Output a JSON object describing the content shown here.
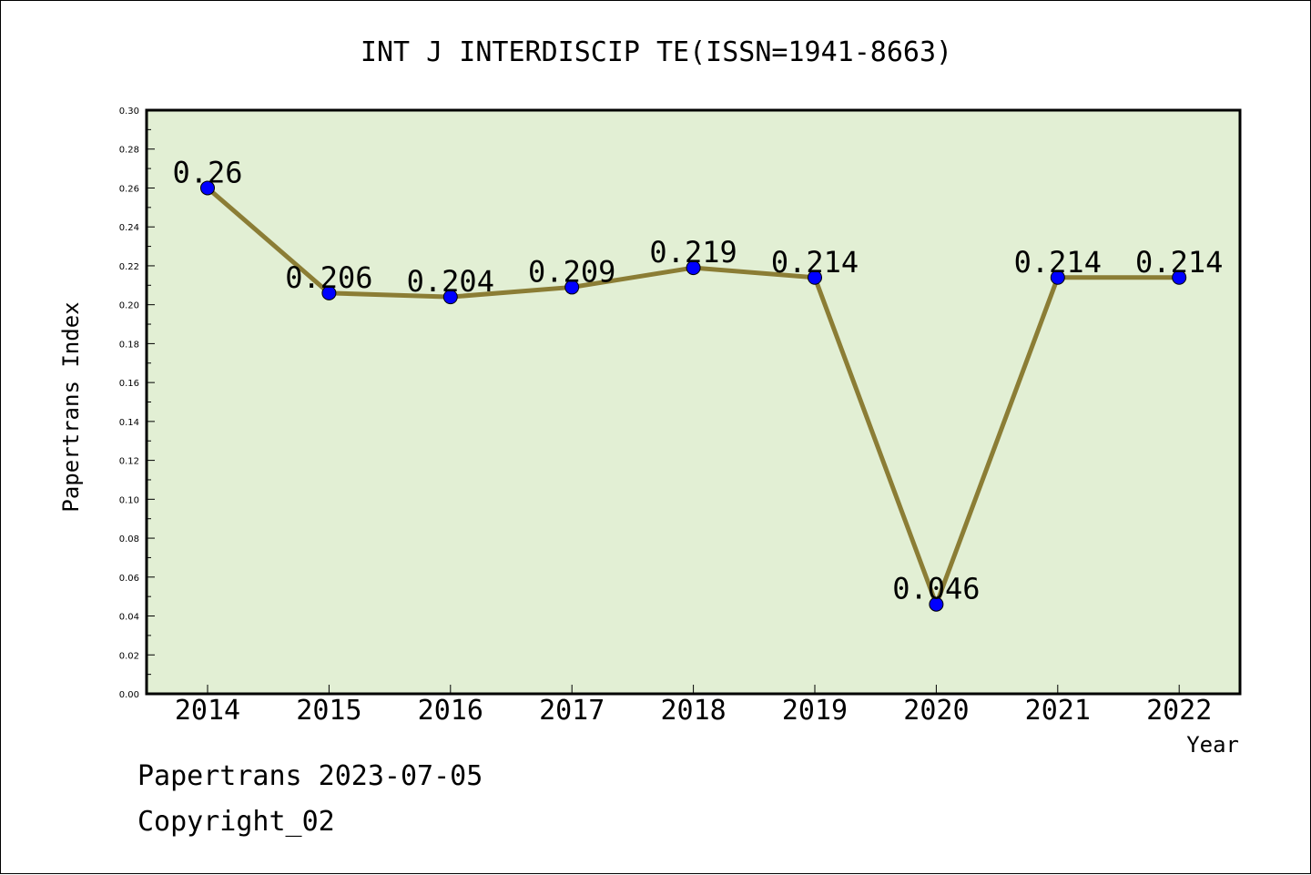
{
  "chart_data": {
    "type": "line",
    "title": "INT J INTERDISCIP TE(ISSN=1941-8663)",
    "xlabel": "Year",
    "ylabel": "Papertrans Index",
    "categories": [
      "2014",
      "2015",
      "2016",
      "2017",
      "2018",
      "2019",
      "2020",
      "2021",
      "2022"
    ],
    "series": [
      {
        "values": [
          0.26,
          0.206,
          0.204,
          0.209,
          0.219,
          0.214,
          0.046,
          0.214,
          0.214
        ],
        "labels": [
          "0.26",
          "0.206",
          "0.204",
          "0.209",
          "0.219",
          "0.214",
          "0.046",
          "0.214",
          "0.214"
        ]
      }
    ],
    "ylim": [
      0,
      0.3
    ],
    "yticks": [
      "0.00",
      "0.02",
      "0.04",
      "0.06",
      "0.08",
      "0.10",
      "0.12",
      "0.14",
      "0.16",
      "0.18",
      "0.20",
      "0.22",
      "0.24",
      "0.26",
      "0.28",
      "0.30"
    ],
    "grid": false,
    "colors": {
      "plot_background": "#e2efd4",
      "line": "#8b7d35",
      "marker": "#0000ff"
    }
  },
  "footer": {
    "line1": "Papertrans 2023-07-05",
    "line2": "Copyright_02"
  }
}
